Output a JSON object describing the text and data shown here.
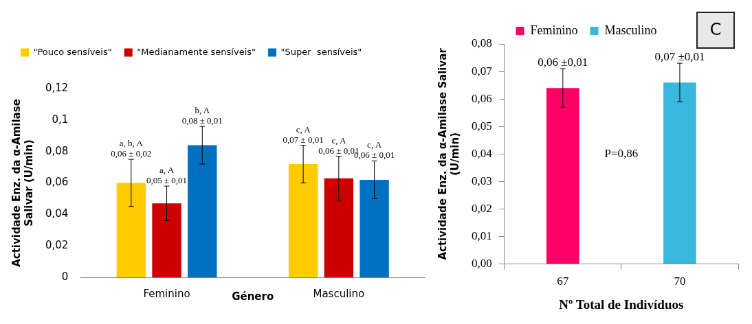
{
  "chart_data": [
    {
      "type": "bar",
      "xlabel": "Género",
      "ylabel": "Actividade Enz. da α-Amilase Salivar (U/min)",
      "categories": [
        "Feminino",
        "Masculino"
      ],
      "ylim": [
        0,
        0.12
      ],
      "yticks": [
        {
          "value": 0,
          "label": "0"
        },
        {
          "value": 0.02,
          "label": "0,02"
        },
        {
          "value": 0.04,
          "label": "0,04"
        },
        {
          "value": 0.06,
          "label": "0,06"
        },
        {
          "value": 0.08,
          "label": "0,08"
        },
        {
          "value": 0.1,
          "label": "0,1"
        },
        {
          "value": 0.12,
          "label": "0,12"
        }
      ],
      "legend": "top left",
      "series": [
        {
          "name": "\"Pouco sensíveis\"",
          "color": "#ffcc00",
          "values": [
            0.06,
            0.072
          ],
          "errors": [
            0.015,
            0.012
          ],
          "value_labels": [
            "a, b, A\n0,06 ± 0,02",
            "c, A\n0,07 ± 0,01"
          ]
        },
        {
          "name": "\"Medianamente sensíveis\"",
          "color": "#cc0000",
          "values": [
            0.047,
            0.063
          ],
          "errors": [
            0.011,
            0.014
          ],
          "value_labels": [
            "a, A\n0,05 ± 0,01",
            "c, A\n0,06 ± 0,01"
          ]
        },
        {
          "name": "\"Super  sensíveis\"",
          "color": "#0070c0",
          "values": [
            0.084,
            0.062
          ],
          "errors": [
            0.012,
            0.012
          ],
          "value_labels": [
            "b, A\n0,08 ± 0,01",
            "c, A\n0,06 ± 0,01"
          ]
        }
      ]
    },
    {
      "type": "bar",
      "title": "C",
      "xlabel": "Nº Total de Indivíduos",
      "ylabel": "Actividade Enz. da α-Amilase Salivar (U/min)",
      "categories": [
        "67",
        "70"
      ],
      "ylim": [
        0,
        0.08
      ],
      "yticks": [
        {
          "value": 0,
          "label": "0,00"
        },
        {
          "value": 0.01,
          "label": "0,01"
        },
        {
          "value": 0.02,
          "label": "0,02"
        },
        {
          "value": 0.03,
          "label": "0,03"
        },
        {
          "value": 0.04,
          "label": "0,04"
        },
        {
          "value": 0.05,
          "label": "0,05"
        },
        {
          "value": 0.06,
          "label": "0,06"
        },
        {
          "value": 0.07,
          "label": "0,07"
        },
        {
          "value": 0.08,
          "label": "0,08"
        }
      ],
      "legend": "top",
      "annotations": [
        "P=0,86"
      ],
      "series": [
        {
          "name": "Feminino",
          "color": "#ff0066",
          "values": [
            0.064,
            null
          ],
          "errors": [
            0.007,
            null
          ],
          "value_labels": [
            "0,06 ±0,01",
            null
          ]
        },
        {
          "name": "Masculino",
          "color": "#38b8dc",
          "values": [
            null,
            0.066
          ],
          "errors": [
            null,
            0.007
          ],
          "value_labels": [
            null,
            "0,07 ±0,01"
          ]
        }
      ]
    }
  ]
}
